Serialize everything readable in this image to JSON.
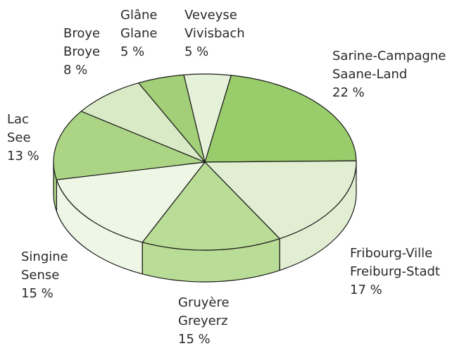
{
  "chart_data": {
    "type": "pie3d",
    "categories": [
      [
        "Sarine-Campagne",
        "Saane-Land"
      ],
      [
        "Fribourg-Ville",
        "Freiburg-Stadt"
      ],
      [
        "Gruyère",
        "Greyerz"
      ],
      [
        "Singine",
        "Sense"
      ],
      [
        "Lac",
        "See"
      ],
      [
        "Broye",
        "Broye"
      ],
      [
        "Glâne",
        "Glane"
      ],
      [
        "Veveyse",
        "Vivisbach"
      ]
    ],
    "values": [
      22,
      17,
      15,
      15,
      13,
      8,
      5,
      5
    ],
    "value_labels": [
      "22 %",
      "17 %",
      "15 %",
      "15 %",
      "13 %",
      "8 %",
      "5 %",
      "5 %"
    ],
    "colors": [
      "#99cc6a",
      "#e1eed2",
      "#b9dc96",
      "#eef6e6",
      "#acd485",
      "#d9eac6",
      "#a2cf78",
      "#e6f1da"
    ]
  }
}
